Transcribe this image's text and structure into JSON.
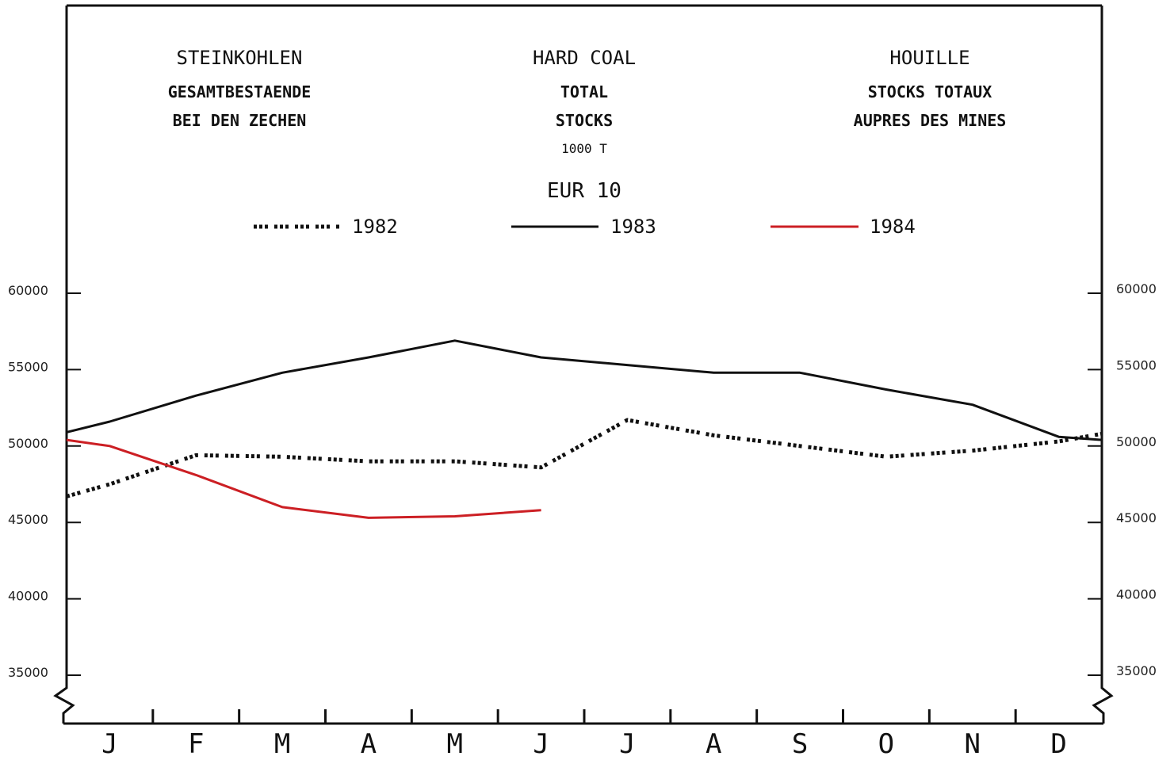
{
  "titles": {
    "de": [
      "STEINKOHLEN",
      "GESAMTBESTAENDE",
      "BEI DEN ZECHEN"
    ],
    "en": [
      "HARD COAL",
      "TOTAL",
      "STOCKS"
    ],
    "unit": "1000 T",
    "region": "EUR 10",
    "fr": [
      "HOUILLE",
      "STOCKS TOTAUX",
      "AUPRES DES MINES"
    ]
  },
  "colors": {
    "s1982": "#111111",
    "s1983": "#111111",
    "s1984": "#cc1f24",
    "frame": "#111111"
  },
  "chart_data": {
    "type": "line",
    "categories": [
      "J",
      "F",
      "M",
      "A",
      "M",
      "J",
      "J",
      "A",
      "S",
      "O",
      "N",
      "D"
    ],
    "ylim": [
      32000,
      62000
    ],
    "yticks": [
      35000,
      40000,
      45000,
      50000,
      55000,
      60000
    ],
    "y_tick_labels": [
      "35000",
      "40000",
      "45000",
      "50000",
      "55000",
      "60000"
    ],
    "legend_position": "top-center",
    "series": [
      {
        "name": "1982",
        "style": "dotted",
        "x": [
          0,
          0.5,
          1.5,
          2.5,
          3.5,
          4.5,
          5.5,
          6.5,
          7.5,
          8.5,
          9.5,
          10.5,
          11.5,
          12
        ],
        "values": [
          46700,
          47500,
          49400,
          49300,
          49000,
          49000,
          48600,
          51700,
          50700,
          50000,
          49300,
          49700,
          50300,
          50800
        ]
      },
      {
        "name": "1983",
        "style": "solid",
        "x": [
          0,
          0.5,
          1.5,
          2.5,
          3.5,
          4.5,
          5.5,
          6.5,
          7.5,
          8.5,
          9.5,
          10.5,
          11.5,
          12
        ],
        "values": [
          50900,
          51600,
          53300,
          54800,
          55800,
          56900,
          55800,
          55300,
          54800,
          54800,
          53700,
          52700,
          50600,
          50400
        ]
      },
      {
        "name": "1984",
        "style": "solid",
        "x": [
          0,
          0.5,
          1.5,
          2.5,
          3.5,
          4.5,
          5.5
        ],
        "values": [
          50400,
          50000,
          48100,
          46000,
          45300,
          45400,
          45800
        ]
      }
    ]
  }
}
